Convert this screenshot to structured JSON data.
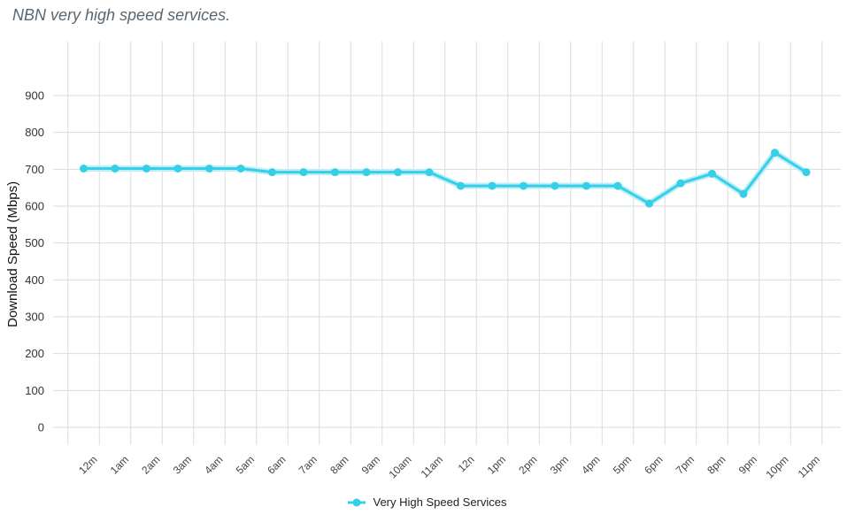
{
  "title": "NBN very high speed services.",
  "legend": {
    "label": "Very High Speed Services"
  },
  "colors": {
    "series": "#35cfe8",
    "band": "#bfeef6",
    "grid": "#d6dee2"
  },
  "chart_data": {
    "type": "line",
    "title": "NBN very high speed services.",
    "xlabel": "",
    "ylabel": "Download Speed (Mbps)",
    "ylim": [
      -50,
      1000
    ],
    "yticks": [
      0,
      100,
      200,
      300,
      400,
      500,
      600,
      700,
      800,
      900
    ],
    "categories": [
      "12m",
      "1am",
      "2am",
      "3am",
      "4am",
      "5am",
      "6am",
      "7am",
      "8am",
      "9am",
      "10am",
      "11am",
      "12n",
      "1pm",
      "2pm",
      "3pm",
      "4pm",
      "5pm",
      "6pm",
      "7pm",
      "8pm",
      "9pm",
      "10pm",
      "11pm"
    ],
    "grid": true,
    "legend_position": "bottom",
    "series": [
      {
        "name": "Very High Speed Services",
        "values": [
          702,
          702,
          702,
          702,
          702,
          702,
          692,
          692,
          692,
          692,
          692,
          692,
          655,
          655,
          655,
          655,
          655,
          655,
          607,
          662,
          688,
          633,
          745,
          692
        ]
      }
    ]
  }
}
